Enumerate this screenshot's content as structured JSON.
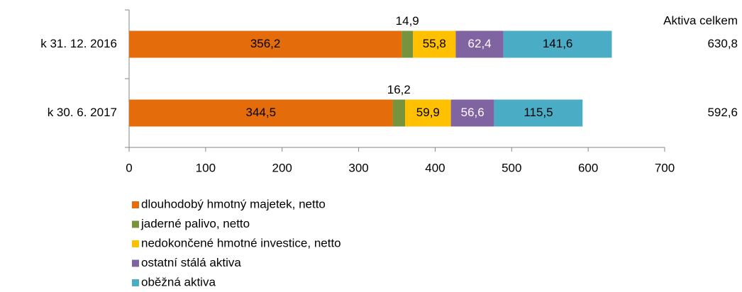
{
  "chart_data": {
    "type": "stacked-barh",
    "categories": [
      "k 31. 12. 2016",
      "k 30. 6. 2017"
    ],
    "series": [
      {
        "name": "dlouhodobý hmotný majetek, netto",
        "color": "#e46c0a",
        "label_color": "#000000",
        "values": [
          356.2,
          344.5
        ],
        "value_labels": [
          "356,2",
          "344,5"
        ]
      },
      {
        "name": "jaderné palivo, netto",
        "color": "#77933c",
        "label_color": "#000000",
        "values": [
          14.9,
          16.2
        ],
        "value_labels": [
          "14,9",
          "16,2"
        ]
      },
      {
        "name": "nedokončené hmotné investice, netto",
        "color": "#ffc000",
        "label_color": "#000000",
        "values": [
          55.8,
          59.9
        ],
        "value_labels": [
          "55,8",
          "59,9"
        ]
      },
      {
        "name": "ostatní stálá aktiva",
        "color": "#8064a2",
        "label_color": "#ffffff",
        "values": [
          62.4,
          56.6
        ],
        "value_labels": [
          "62,4",
          "56,6"
        ]
      },
      {
        "name": "oběžná aktiva",
        "color": "#4bacc6",
        "label_color": "#000000",
        "values": [
          141.6,
          115.5
        ],
        "value_labels": [
          "141,6",
          "115,5"
        ]
      }
    ],
    "totals_title": "Aktiva celkem",
    "totals": [
      630.8,
      592.6
    ],
    "total_labels": [
      "630,8",
      "592,6"
    ],
    "xlim": [
      0,
      700
    ],
    "xticks": [
      0,
      100,
      200,
      300,
      400,
      500,
      600,
      700
    ],
    "legend": "bottom-left"
  }
}
